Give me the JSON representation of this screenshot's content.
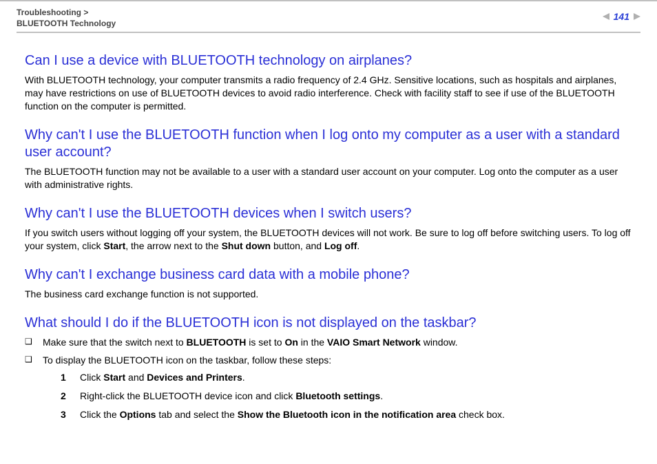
{
  "header": {
    "breadcrumb_line1": "Troubleshooting >",
    "breadcrumb_line2": "BLUETOOTH Technology",
    "page_number": "141"
  },
  "sections": {
    "s1": {
      "title": "Can I use a device with BLUETOOTH technology on airplanes?",
      "body": "With BLUETOOTH technology, your computer transmits a radio frequency of 2.4 GHz. Sensitive locations, such as hospitals and airplanes, may have restrictions on use of BLUETOOTH devices to avoid radio interference. Check with facility staff to see if use of the BLUETOOTH function on the computer is permitted."
    },
    "s2": {
      "title": "Why can't I use the BLUETOOTH function when I log onto my computer as a user with a standard user account?",
      "body": "The BLUETOOTH function may not be available to a user with a standard user account on your computer. Log onto the computer as a user with administrative rights."
    },
    "s3": {
      "title": "Why can't I use the BLUETOOTH devices when I switch users?",
      "body_pre": "If you switch users without logging off your system, the BLUETOOTH devices will not work. Be sure to log off before switching users. To log off your system, click ",
      "bold1": "Start",
      "mid1": ", the arrow next to the ",
      "bold2": "Shut down",
      "mid2": " button, and ",
      "bold3": "Log off",
      "end": "."
    },
    "s4": {
      "title": "Why can't I exchange business card data with a mobile phone?",
      "body": "The business card exchange function is not supported."
    },
    "s5": {
      "title": "What should I do if the BLUETOOTH icon is not displayed on the taskbar?",
      "bullet1_pre": "Make sure that the switch next to ",
      "bullet1_b1": "BLUETOOTH",
      "bullet1_mid1": " is set to ",
      "bullet1_b2": "On",
      "bullet1_mid2": " in the ",
      "bullet1_b3": "VAIO Smart Network",
      "bullet1_end": " window.",
      "bullet2": "To display the BLUETOOTH icon on the taskbar, follow these steps:",
      "step1_num": "1",
      "step1_pre": "Click ",
      "step1_b1": "Start",
      "step1_mid": " and ",
      "step1_b2": "Devices and Printers",
      "step1_end": ".",
      "step2_num": "2",
      "step2_pre": "Right-click the BLUETOOTH device icon and click ",
      "step2_b1": "Bluetooth settings",
      "step2_end": ".",
      "step3_num": "3",
      "step3_pre": "Click the ",
      "step3_b1": "Options",
      "step3_mid": " tab and select the ",
      "step3_b2": "Show the Bluetooth icon in the notification area",
      "step3_end": " check box."
    }
  }
}
